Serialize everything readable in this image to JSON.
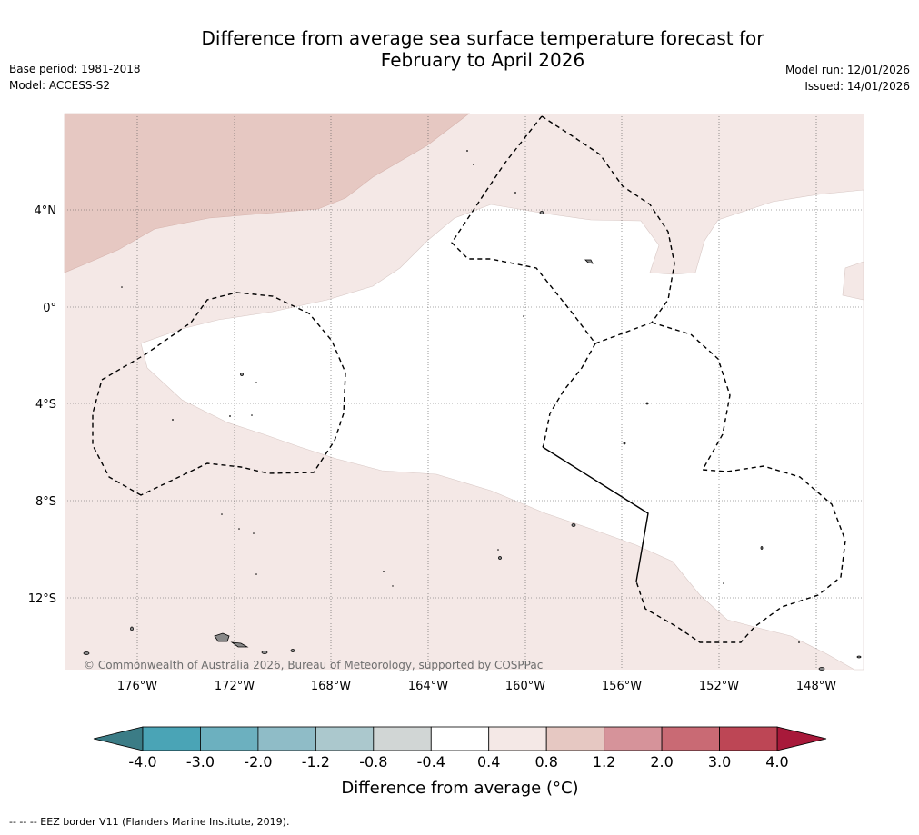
{
  "title": {
    "line1": "Difference from average sea surface temperature forecast for",
    "line2": "February to April 2026"
  },
  "meta": {
    "base_period": "Base period: 1981-2018",
    "model": "Model: ACCESS-S2",
    "model_run": "Model run: 12/01/2026",
    "issued": "Issued: 14/01/2026"
  },
  "map": {
    "copyright": "© Commonwealth of Australia 2026, Bureau of Meteorology, supported by COSPPac",
    "lat_labels": [
      "4°N",
      "0°",
      "4°S",
      "8°S",
      "12°S"
    ],
    "lon_labels": [
      "176°W",
      "172°W",
      "168°W",
      "164°W",
      "160°W",
      "156°W",
      "152°W",
      "148°W"
    ]
  },
  "colorbar": {
    "title": "Difference from average (°C)",
    "tick_labels": [
      "-4.0",
      "-3.0",
      "-2.0",
      "-1.2",
      "-0.8",
      "-0.4",
      "0.4",
      "0.8",
      "1.2",
      "2.0",
      "3.0",
      "4.0"
    ],
    "colors": [
      "#4aa4b6",
      "#6cb0bf",
      "#8fbcc7",
      "#abc8cd",
      "#d1d6d5",
      "#ffffff",
      "#f4e8e6",
      "#e6c8c2",
      "#d6939a",
      "#c96a74",
      "#bd4655"
    ],
    "under_color": "#3b7c86",
    "over_color": "#a8193a"
  },
  "footnote": "--  --  -- EEZ border V11 (Flanders Marine Institute, 2019)."
}
